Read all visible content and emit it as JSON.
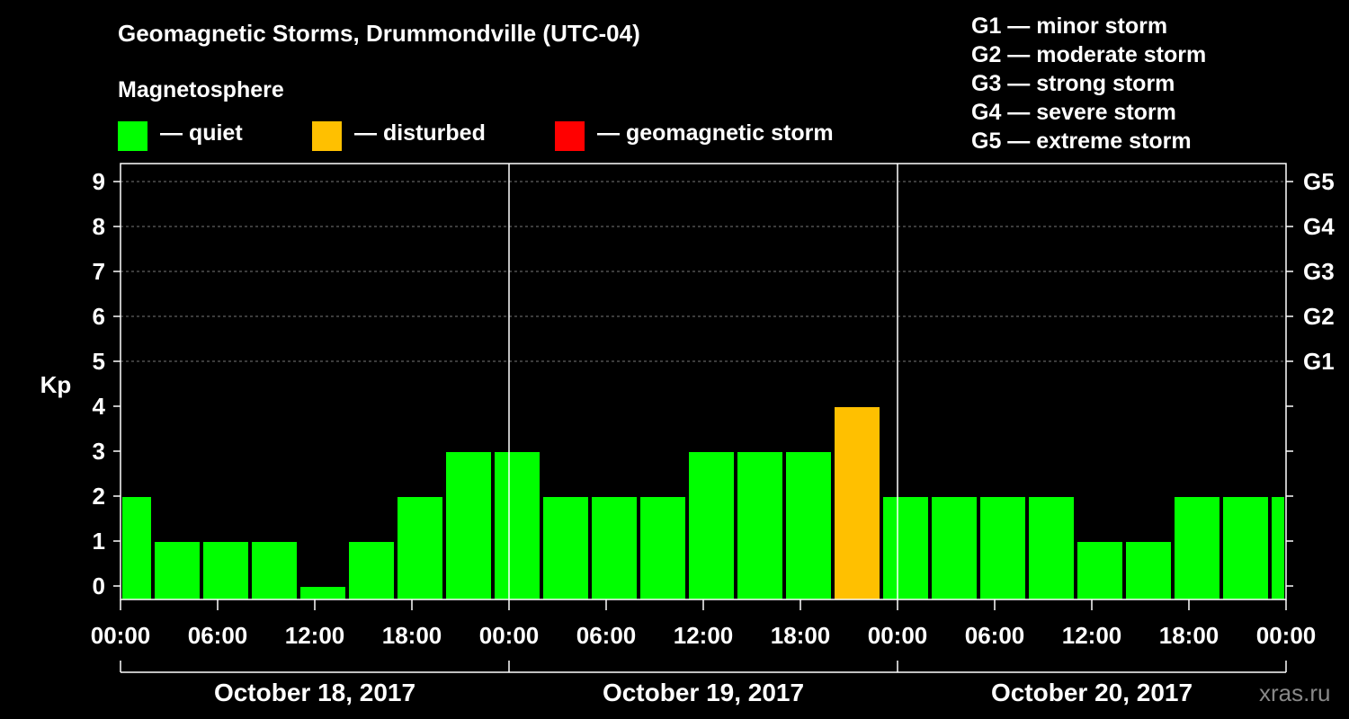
{
  "header": {
    "title": "Geomagnetic Storms, Drummondville (UTC-04)",
    "subtitle": "Magnetosphere"
  },
  "legend": [
    {
      "label": "— quiet",
      "color": "#00ff00"
    },
    {
      "label": "— disturbed",
      "color": "#ffc000"
    },
    {
      "label": "— geomagnetic storm",
      "color": "#ff0000"
    }
  ],
  "g_scale": [
    "G1 — minor storm",
    "G2 — moderate storm",
    "G3 — strong storm",
    "G4 — severe storm",
    "G5 — extreme storm"
  ],
  "watermark": "xras.ru",
  "chart_data": {
    "type": "bar",
    "ylabel": "Kp",
    "ylim": [
      0,
      9
    ],
    "y_ticks": [
      "0",
      "1",
      "2",
      "3",
      "4",
      "5",
      "6",
      "7",
      "8",
      "9"
    ],
    "right_ticks": [
      {
        "kp": 5,
        "label": "G1"
      },
      {
        "kp": 6,
        "label": "G2"
      },
      {
        "kp": 7,
        "label": "G3"
      },
      {
        "kp": 8,
        "label": "G4"
      },
      {
        "kp": 9,
        "label": "G5"
      }
    ],
    "x_tick_labels": [
      "00:00",
      "06:00",
      "12:00",
      "18:00",
      "00:00",
      "06:00",
      "12:00",
      "18:00",
      "00:00",
      "06:00",
      "12:00",
      "18:00",
      "00:00"
    ],
    "days": [
      "October 18, 2017",
      "October 19, 2017",
      "October 20, 2017"
    ],
    "grid": true,
    "legend_position": "top",
    "colors": {
      "quiet": "#00ff00",
      "disturbed": "#ffc000",
      "storm": "#ff0000"
    },
    "bars": [
      {
        "start": "2017-10-18 00:00",
        "end": "2017-10-18 02:00",
        "kp": 2
      },
      {
        "start": "2017-10-18 02:00",
        "end": "2017-10-18 05:00",
        "kp": 1
      },
      {
        "start": "2017-10-18 05:00",
        "end": "2017-10-18 08:00",
        "kp": 1
      },
      {
        "start": "2017-10-18 08:00",
        "end": "2017-10-18 11:00",
        "kp": 1
      },
      {
        "start": "2017-10-18 11:00",
        "end": "2017-10-18 14:00",
        "kp": 0
      },
      {
        "start": "2017-10-18 14:00",
        "end": "2017-10-18 17:00",
        "kp": 1
      },
      {
        "start": "2017-10-18 17:00",
        "end": "2017-10-18 20:00",
        "kp": 2
      },
      {
        "start": "2017-10-18 20:00",
        "end": "2017-10-18 23:00",
        "kp": 3
      },
      {
        "start": "2017-10-18 23:00",
        "end": "2017-10-19 02:00",
        "kp": 3
      },
      {
        "start": "2017-10-19 02:00",
        "end": "2017-10-19 05:00",
        "kp": 2
      },
      {
        "start": "2017-10-19 05:00",
        "end": "2017-10-19 08:00",
        "kp": 2
      },
      {
        "start": "2017-10-19 08:00",
        "end": "2017-10-19 11:00",
        "kp": 2
      },
      {
        "start": "2017-10-19 11:00",
        "end": "2017-10-19 14:00",
        "kp": 3
      },
      {
        "start": "2017-10-19 14:00",
        "end": "2017-10-19 17:00",
        "kp": 3
      },
      {
        "start": "2017-10-19 17:00",
        "end": "2017-10-19 20:00",
        "kp": 3
      },
      {
        "start": "2017-10-19 20:00",
        "end": "2017-10-19 23:00",
        "kp": 4
      },
      {
        "start": "2017-10-19 23:00",
        "end": "2017-10-20 02:00",
        "kp": 2
      },
      {
        "start": "2017-10-20 02:00",
        "end": "2017-10-20 05:00",
        "kp": 2
      },
      {
        "start": "2017-10-20 05:00",
        "end": "2017-10-20 08:00",
        "kp": 2
      },
      {
        "start": "2017-10-20 08:00",
        "end": "2017-10-20 11:00",
        "kp": 2
      },
      {
        "start": "2017-10-20 11:00",
        "end": "2017-10-20 14:00",
        "kp": 1
      },
      {
        "start": "2017-10-20 14:00",
        "end": "2017-10-20 17:00",
        "kp": 1
      },
      {
        "start": "2017-10-20 17:00",
        "end": "2017-10-20 20:00",
        "kp": 2
      },
      {
        "start": "2017-10-20 20:00",
        "end": "2017-10-20 23:00",
        "kp": 2
      },
      {
        "start": "2017-10-20 23:00",
        "end": "2017-10-21 00:00",
        "kp": 2
      }
    ]
  }
}
